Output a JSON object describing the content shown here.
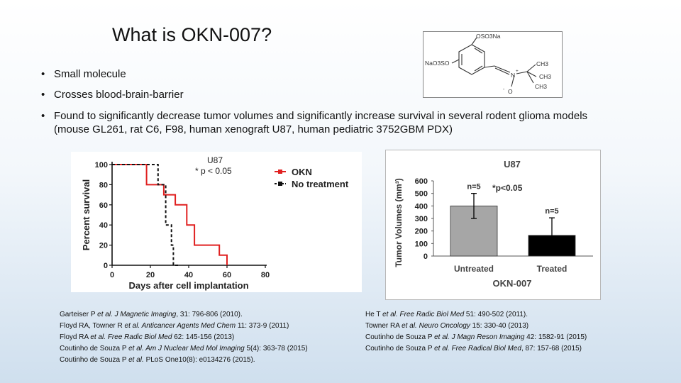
{
  "slide": {
    "title": "What is OKN-007?",
    "bullets": [
      {
        "text": "Small molecule"
      },
      {
        "text": "Crosses blood-brain-barrier"
      },
      {
        "text": "Found to significantly decrease tumor volumes and significantly increase survival in several rodent glioma models (mouse GL261, rat C6, F98, human xenograft U87, human pediatric 3752GBM PDX)"
      }
    ],
    "bullet_glyph": "•"
  },
  "structure": {
    "labels": [
      "OSO3Na",
      "NaO3SO",
      "N",
      "+",
      "O",
      "-",
      "CH3",
      "CH3",
      "CH3"
    ]
  },
  "chart_data": [
    {
      "type": "line",
      "title": "U87",
      "annotation": "* p < 0.05",
      "xlabel": "Days after cell implantation",
      "ylabel": "Percent survival",
      "xlim": [
        0,
        80
      ],
      "ylim": [
        0,
        100
      ],
      "xticks": [
        "0",
        "20",
        "40",
        "60",
        "80"
      ],
      "yticks": [
        "0",
        "20",
        "40",
        "60",
        "80",
        "100"
      ],
      "legend_position": "top-right",
      "series": [
        {
          "name": "OKN",
          "color": "#e02020",
          "style": "solid",
          "x": [
            0,
            18,
            18,
            27,
            27,
            33,
            33,
            39,
            39,
            43,
            43,
            56,
            56,
            60,
            60
          ],
          "y": [
            100,
            100,
            80,
            80,
            70,
            70,
            60,
            60,
            40,
            40,
            20,
            20,
            10,
            10,
            0
          ]
        },
        {
          "name": "No treatment",
          "color": "#111111",
          "style": "dashed",
          "x": [
            0,
            24,
            24,
            28,
            28,
            31,
            31,
            32,
            32,
            35
          ],
          "y": [
            100,
            100,
            80,
            80,
            40,
            40,
            20,
            20,
            0,
            0
          ]
        }
      ]
    },
    {
      "type": "bar",
      "title": "U87",
      "annotation": "*p<0.05",
      "xlabel": "OKN-007",
      "ylabel": "Tumor Volumes (mm³)",
      "ylim": [
        0,
        600
      ],
      "yticks": [
        "0",
        "100",
        "200",
        "300",
        "400",
        "500",
        "600"
      ],
      "categories": [
        "Untreated",
        "Treated"
      ],
      "values": [
        400,
        165
      ],
      "errors": [
        100,
        140
      ],
      "bar_labels": [
        "n=5",
        "n=5"
      ],
      "colors": [
        "#a6a6a6",
        "#000000"
      ]
    }
  ],
  "references": {
    "left": [
      {
        "pre": "Garteiser P ",
        "em": "et al. J Magnetic Imaging",
        "post": ", 31: 796-806 (2010)."
      },
      {
        "pre": "Floyd RA, Towner R ",
        "em": "et al. Anticancer Agents Med Chem",
        "post": " 11: 373-9 (2011)"
      },
      {
        "pre": "Floyd RA ",
        "em": "et al. Free Radic Biol Med",
        "post": " 62: 145-156 (2013)"
      },
      {
        "pre": "Coutinho de Souza P ",
        "em": "et al. Am J Nuclear Med Mol Imaging",
        "post": " 5(4): 363-78 (2015)"
      },
      {
        "pre": "Coutinho de Souza P ",
        "em": "et al.",
        "post": " PLoS One10(8): e0134276 (2015)."
      }
    ],
    "right": [
      {
        "pre": "He T ",
        "em": "et al. Free Radic Biol Med",
        "post": " 51: 490-502 (2011)."
      },
      {
        "pre": "Towner RA ",
        "em": "et al. Neuro Oncology",
        "post": " 15: 330-40 (2013)"
      },
      {
        "pre": "Coutinho de Souza P ",
        "em": "et al. J Magn Reson Imaging",
        "post": " 42: 1582-91 (2015)"
      },
      {
        "pre": "Coutinho de Souza P ",
        "em": "et al. Free Radical Biol Med",
        "post": ", 87: 157-68 (2015)"
      }
    ]
  }
}
